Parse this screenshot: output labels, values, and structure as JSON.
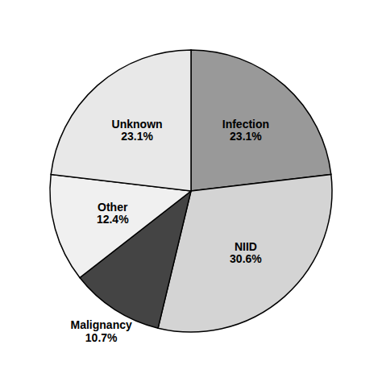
{
  "chart_data": {
    "type": "pie",
    "categories": [
      "Infection",
      "NIID",
      "Malignancy",
      "Other",
      "Unknown"
    ],
    "values": [
      23.1,
      30.6,
      10.7,
      12.4,
      23.1
    ],
    "value_labels": [
      "23.1%",
      "30.6%",
      "10.7%",
      "12.4%",
      "23.1%"
    ],
    "colors": [
      "#999999",
      "#d4d4d4",
      "#444444",
      "#f0f0f0",
      "#e8e8e8"
    ],
    "data_labels": true
  }
}
